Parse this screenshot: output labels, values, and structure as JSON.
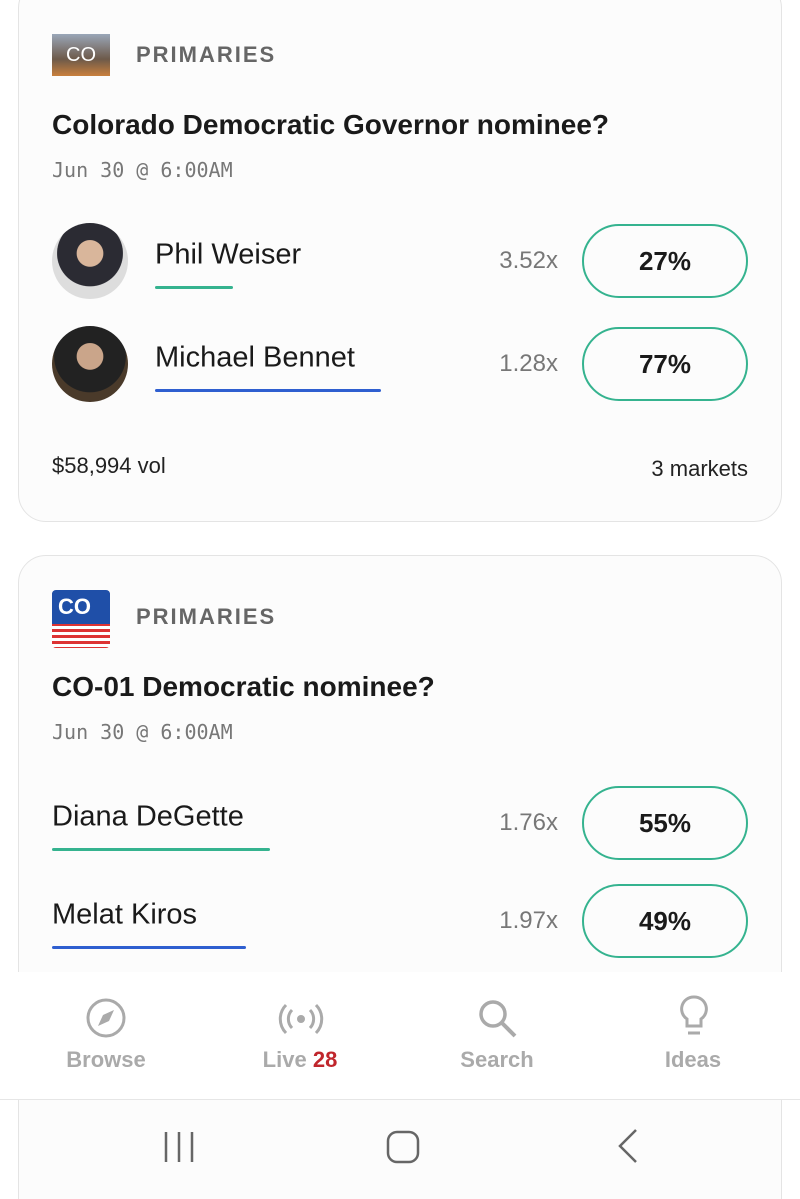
{
  "cards": [
    {
      "badge": "CO",
      "category": "PRIMARIES",
      "title": "Colorado Democratic Governor nominee?",
      "date": "Jun 30 @ 6:00AM",
      "outcomes": [
        {
          "name": "Phil Weiser",
          "multiplier": "3.52x",
          "chance": "27%"
        },
        {
          "name": "Michael Bennet",
          "multiplier": "1.28x",
          "chance": "77%"
        }
      ],
      "volume": "$58,994 vol",
      "markets": "3 markets"
    },
    {
      "badge": "CO",
      "category": "PRIMARIES",
      "title": "CO-01 Democratic nominee?",
      "date": "Jun 30 @ 6:00AM",
      "outcomes": [
        {
          "name": "Diana DeGette",
          "multiplier": "1.76x",
          "chance": "55%"
        },
        {
          "name": "Melat Kiros",
          "multiplier": "1.97x",
          "chance": "49%"
        }
      ]
    }
  ],
  "nav": {
    "browse": "Browse",
    "live": "Live",
    "live_count": "28",
    "search": "Search",
    "ideas": "Ideas"
  }
}
